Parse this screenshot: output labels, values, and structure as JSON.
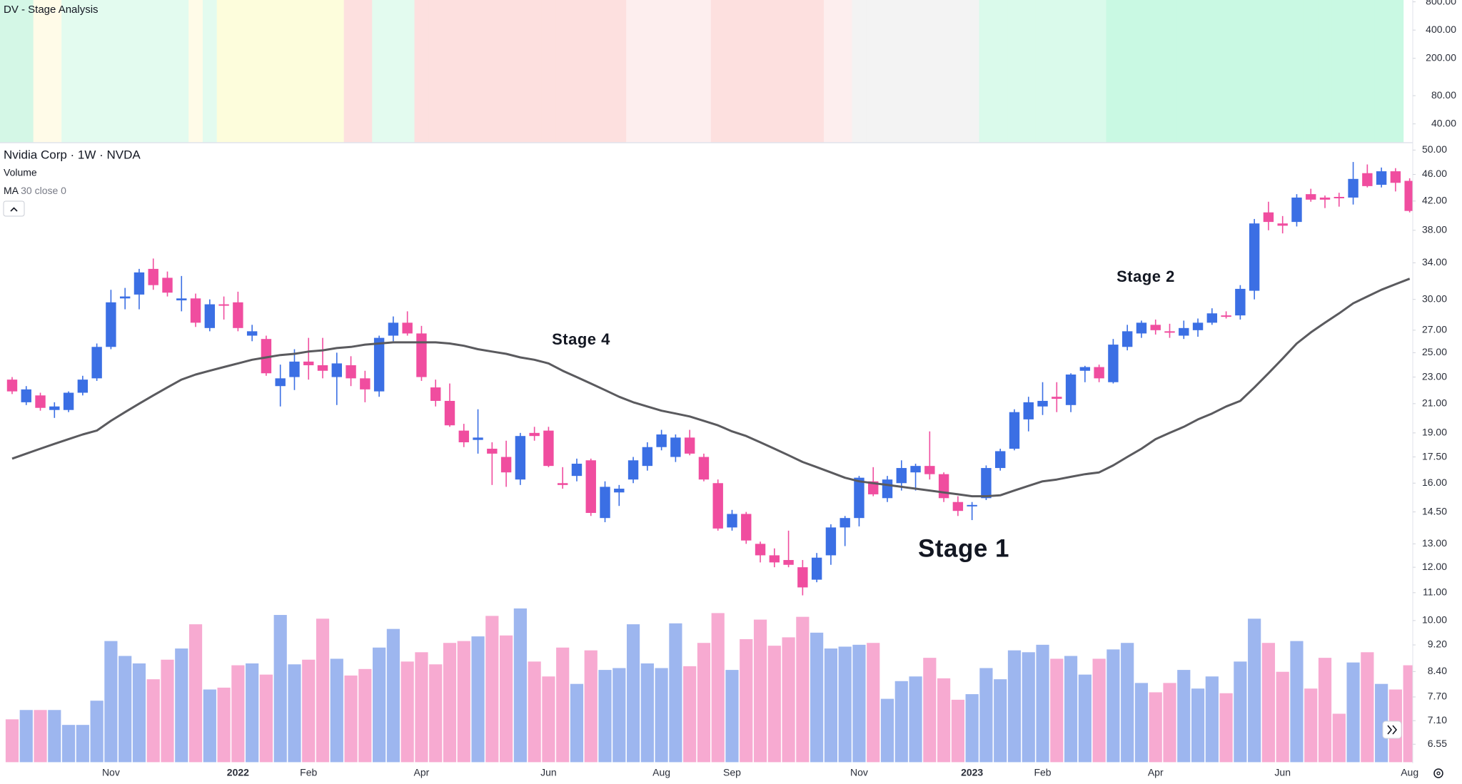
{
  "chart_data": {
    "type": "candlestick",
    "title": "Nvidia Corp · 1W · NVDA",
    "log_scale": true,
    "ylim": [
      6.16,
      51.3
    ],
    "yticks": [
      {
        "value": 50,
        "label": "50.00"
      },
      {
        "value": 46,
        "label": "46.00"
      },
      {
        "value": 42,
        "label": "42.00"
      },
      {
        "value": 38,
        "label": "38.00"
      },
      {
        "value": 34,
        "label": "34.00"
      },
      {
        "value": 30,
        "label": "30.00"
      },
      {
        "value": 27,
        "label": "27.00"
      },
      {
        "value": 25,
        "label": "25.00"
      },
      {
        "value": 23,
        "label": "23.00"
      },
      {
        "value": 21,
        "label": "21.00"
      },
      {
        "value": 19,
        "label": "19.00"
      },
      {
        "value": 17.5,
        "label": "17.50"
      },
      {
        "value": 16,
        "label": "16.00"
      },
      {
        "value": 14.5,
        "label": "14.50"
      },
      {
        "value": 13,
        "label": "13.00"
      },
      {
        "value": 12,
        "label": "12.00"
      },
      {
        "value": 11,
        "label": "11.00"
      },
      {
        "value": 10,
        "label": "10.00"
      },
      {
        "value": 9.2,
        "label": "9.20"
      },
      {
        "value": 8.4,
        "label": "8.40"
      },
      {
        "value": 7.7,
        "label": "7.70"
      },
      {
        "value": 7.1,
        "label": "7.10"
      },
      {
        "value": 6.55,
        "label": "6.55"
      }
    ],
    "categories": [
      null,
      null,
      null,
      null,
      null,
      null,
      null,
      "Nov",
      null,
      null,
      null,
      null,
      null,
      null,
      null,
      null,
      "2022",
      null,
      null,
      null,
      null,
      "Feb",
      null,
      null,
      null,
      null,
      null,
      null,
      null,
      "Apr",
      null,
      null,
      null,
      null,
      null,
      null,
      null,
      null,
      "Jun",
      null,
      null,
      null,
      null,
      null,
      null,
      null,
      "Aug",
      null,
      null,
      null,
      null,
      "Sep",
      null,
      null,
      null,
      null,
      null,
      null,
      null,
      null,
      "Nov",
      null,
      null,
      null,
      null,
      null,
      null,
      null,
      "2023",
      null,
      null,
      null,
      null,
      "Feb",
      null,
      null,
      null,
      null,
      null,
      null,
      null,
      "Apr",
      null,
      null,
      null,
      null,
      null,
      null,
      null,
      null,
      "Jun",
      null,
      null,
      null,
      null,
      null,
      null,
      null,
      null,
      "Aug"
    ],
    "open": [
      22.8,
      21.1,
      21.6,
      20.55,
      20.55,
      21.8,
      22.9,
      25.5,
      30.1,
      30.5,
      33.3,
      32.3,
      29.9,
      30.1,
      27.2,
      29.5,
      29.7,
      26.5,
      26.2,
      22.3,
      23.0,
      24.25,
      23.95,
      23.0,
      23.95,
      22.9,
      21.9,
      26.5,
      27.7,
      26.7,
      22.2,
      21.2,
      19.15,
      18.55,
      18.0,
      17.5,
      16.2,
      19.0,
      19.15,
      16.0,
      16.4,
      17.3,
      14.2,
      15.5,
      16.2,
      16.97,
      18.1,
      17.5,
      18.7,
      17.5,
      16.0,
      13.75,
      14.4,
      13.0,
      12.5,
      12.3,
      12.0,
      11.5,
      12.5,
      13.75,
      14.2,
      16.1,
      15.2,
      16.0,
      16.6,
      16.97,
      16.5,
      15.0,
      14.8,
      15.2,
      16.85,
      18.0,
      19.9,
      20.8,
      21.5,
      20.9,
      23.5,
      23.8,
      22.6,
      25.5,
      26.7,
      27.5,
      26.9,
      26.5,
      27.0,
      27.7,
      28.4,
      28.4,
      30.9,
      40.4,
      38.9,
      39.1,
      43.0,
      42.5,
      42.6,
      42.5,
      46.2,
      44.4,
      46.5,
      45.0
    ],
    "high": [
      23.0,
      22.3,
      21.8,
      21.1,
      21.9,
      23.1,
      25.8,
      31.0,
      31.2,
      33.3,
      34.5,
      33.0,
      32.5,
      30.6,
      30.0,
      30.3,
      30.8,
      27.5,
      26.5,
      24.0,
      25.3,
      26.3,
      26.3,
      25.0,
      24.7,
      23.5,
      26.5,
      28.3,
      28.8,
      27.4,
      22.8,
      22.5,
      19.6,
      20.6,
      18.4,
      18.5,
      19.0,
      19.4,
      19.4,
      16.9,
      17.4,
      17.4,
      16.1,
      15.9,
      17.5,
      18.4,
      19.2,
      18.9,
      19.2,
      17.7,
      16.2,
      14.6,
      14.5,
      13.1,
      12.8,
      13.6,
      12.3,
      12.6,
      13.9,
      14.3,
      16.4,
      16.9,
      16.4,
      17.3,
      17.1,
      19.1,
      16.6,
      15.3,
      15.0,
      17.0,
      18.0,
      20.6,
      21.5,
      22.6,
      22.6,
      23.3,
      23.9,
      24.0,
      26.2,
      27.5,
      27.9,
      28.0,
      27.6,
      27.9,
      28.1,
      29.1,
      28.8,
      31.5,
      39.5,
      41.9,
      39.9,
      43.0,
      43.8,
      42.8,
      43.2,
      48.0,
      47.6,
      47.1,
      47.0,
      45.4
    ],
    "low": [
      21.7,
      20.9,
      20.5,
      20.0,
      20.4,
      21.6,
      22.7,
      25.3,
      29.0,
      29.0,
      31.0,
      30.3,
      28.8,
      27.3,
      26.9,
      28.0,
      26.9,
      26.0,
      23.1,
      20.8,
      22.0,
      22.8,
      22.9,
      20.9,
      22.3,
      21.1,
      21.5,
      26.0,
      26.5,
      22.7,
      20.8,
      19.4,
      18.1,
      17.7,
      15.9,
      15.8,
      15.9,
      18.5,
      16.9,
      15.7,
      16.1,
      14.3,
      14.0,
      14.8,
      16.0,
      16.7,
      17.9,
      17.2,
      17.6,
      16.1,
      13.6,
      13.6,
      13.0,
      12.2,
      12.0,
      12.0,
      10.9,
      11.4,
      12.1,
      12.9,
      13.8,
      15.3,
      15.0,
      15.6,
      15.6,
      16.2,
      15.0,
      14.3,
      14.1,
      15.1,
      16.7,
      17.9,
      19.1,
      20.2,
      20.4,
      20.4,
      22.6,
      22.6,
      22.5,
      25.2,
      26.3,
      26.6,
      26.3,
      26.2,
      26.4,
      27.5,
      28.1,
      28.0,
      30.0,
      38.0,
      37.6,
      38.5,
      41.9,
      41.0,
      41.2,
      41.5,
      44.0,
      44.0,
      43.4,
      40.4
    ],
    "close": [
      21.9,
      22.05,
      20.7,
      20.8,
      21.8,
      22.8,
      25.5,
      29.7,
      30.3,
      32.9,
      31.5,
      30.7,
      30.1,
      27.7,
      29.5,
      29.4,
      27.2,
      26.9,
      23.3,
      22.9,
      24.25,
      23.95,
      23.5,
      24.1,
      22.9,
      22.05,
      26.3,
      27.7,
      26.7,
      23.0,
      21.2,
      19.5,
      18.4,
      18.7,
      17.7,
      16.6,
      18.8,
      18.8,
      16.97,
      15.9,
      17.1,
      14.45,
      15.8,
      15.7,
      17.3,
      18.1,
      18.9,
      18.7,
      17.7,
      16.2,
      13.7,
      14.4,
      13.15,
      12.5,
      12.2,
      12.1,
      11.2,
      12.4,
      13.75,
      14.2,
      16.3,
      15.4,
      16.2,
      16.85,
      16.97,
      16.5,
      15.2,
      14.55,
      14.85,
      16.85,
      17.85,
      20.4,
      21.1,
      21.2,
      21.35,
      23.2,
      23.8,
      22.9,
      25.7,
      26.9,
      27.7,
      27.0,
      26.8,
      27.2,
      27.7,
      28.6,
      28.3,
      31.1,
      38.9,
      39.1,
      38.6,
      42.5,
      42.2,
      42.2,
      42.5,
      45.3,
      44.2,
      46.5,
      44.7,
      40.6
    ],
    "up_color": "#3b6fe4",
    "down_color": "#f04d9f",
    "volume": {
      "name": "Volume",
      "ylim": [
        0,
        300
      ],
      "up_color": "#9db6ef",
      "down_color": "#f7aad1",
      "values": [
        46,
        56,
        56,
        56,
        40,
        40,
        66,
        130,
        114,
        106,
        89,
        110,
        122,
        148,
        78,
        80,
        104,
        106,
        94,
        158,
        105,
        110,
        154,
        111,
        93,
        100,
        123,
        143,
        108,
        118,
        105,
        128,
        130,
        135,
        157,
        136,
        165,
        108,
        92,
        123,
        84,
        120,
        99,
        101,
        148,
        106,
        101,
        149,
        103,
        128,
        160,
        99,
        132,
        153,
        125,
        134,
        156,
        139,
        122,
        124,
        126,
        128,
        68,
        87,
        92,
        112,
        90,
        67,
        73,
        101,
        89,
        120,
        118,
        126,
        111,
        114,
        94,
        111,
        121,
        128,
        85,
        75,
        85,
        99,
        79,
        92,
        74,
        108,
        154,
        128,
        97,
        130,
        79,
        112,
        52,
        107,
        118,
        84,
        78,
        104
      ]
    },
    "ma": {
      "label": "MA",
      "params": "30 close 0",
      "color": "#5a5a5e",
      "values": [
        17.4,
        17.7,
        18.0,
        18.3,
        18.6,
        18.9,
        19.15,
        19.8,
        20.4,
        21.0,
        21.6,
        22.2,
        22.8,
        23.2,
        23.5,
        23.8,
        24.1,
        24.4,
        24.6,
        24.8,
        24.9,
        25.1,
        25.2,
        25.4,
        25.5,
        25.7,
        25.8,
        25.9,
        25.9,
        25.9,
        25.9,
        25.8,
        25.6,
        25.3,
        25.1,
        24.9,
        24.6,
        24.4,
        24.1,
        23.5,
        23.0,
        22.5,
        22.0,
        21.5,
        21.1,
        20.8,
        20.5,
        20.3,
        20.1,
        19.8,
        19.5,
        19.1,
        18.8,
        18.4,
        18.0,
        17.6,
        17.2,
        16.9,
        16.6,
        16.3,
        16.1,
        16.0,
        15.9,
        15.8,
        15.7,
        15.6,
        15.5,
        15.4,
        15.3,
        15.3,
        15.35,
        15.6,
        15.85,
        16.1,
        16.2,
        16.35,
        16.5,
        16.6,
        17.0,
        17.5,
        18.0,
        18.6,
        19.0,
        19.4,
        19.9,
        20.3,
        20.8,
        21.2,
        22.2,
        23.3,
        24.5,
        25.8,
        26.8,
        27.7,
        28.6,
        29.6,
        30.3,
        31.0,
        31.6,
        32.2
      ]
    },
    "annotations": [
      "Stage 4",
      "Stage 2",
      "Stage 1"
    ],
    "indicator": {
      "title": "DV - Stage Analysis",
      "log_scale": true,
      "ylim": [
        25.3,
        837
      ],
      "yticks": [
        {
          "value": 800,
          "label": "800.00"
        },
        {
          "value": 400,
          "label": "400.00"
        },
        {
          "value": 200,
          "label": "200.00"
        },
        {
          "value": 80,
          "label": "80.00"
        },
        {
          "value": 40,
          "label": "40.00"
        }
      ],
      "colors": [
        "#d4f7e6",
        "#d4f7e6",
        "#fffbe8",
        "#fffbe8",
        "#e3fbef",
        "#e3fbef",
        "#e3fbef",
        "#e3fbef",
        "#e3fbef",
        "#e3fbef",
        "#e3fbef",
        "#e3fbef",
        "#e3fbef",
        "#fffbe8",
        "#e3fbef",
        "#fdfddc",
        "#fdfddc",
        "#fdfddc",
        "#fdfddc",
        "#fdfddc",
        "#fdfddc",
        "#fdfddc",
        "#fdfddc",
        "#fdfddc",
        "#fde0df",
        "#fde0df",
        "#e3fbef",
        "#e3fbef",
        "#e3fbef",
        "#fde0df",
        "#fde0df",
        "#fde0df",
        "#fde0df",
        "#fde0df",
        "#fde0df",
        "#fde0df",
        "#fde0df",
        "#fde0df",
        "#fde0df",
        "#fde0df",
        "#fde0df",
        "#fde0df",
        "#fde0df",
        "#fde0df",
        "#fdeeee",
        "#fdeeee",
        "#fdeeee",
        "#fdeeee",
        "#fdeeee",
        "#fdeeee",
        "#fde0df",
        "#fde0df",
        "#fde0df",
        "#fde0df",
        "#fde0df",
        "#fde0df",
        "#fde0df",
        "#fde0df",
        "#fdeeee",
        "#fdeeee",
        "#f3f3f3",
        "#f3f3f3",
        "#f3f3f3",
        "#f3f3f3",
        "#f3f3f3",
        "#f3f3f3",
        "#f3f3f3",
        "#f3f3f3",
        "#f3f3f3",
        "#dafaeb",
        "#dafaeb",
        "#dafaeb",
        "#dafaeb",
        "#dafaeb",
        "#dafaeb",
        "#dafaeb",
        "#dafaeb",
        "#dafaeb",
        "#c9f9e3",
        "#c9f9e3",
        "#c9f9e3",
        "#c9f9e3",
        "#c9f9e3",
        "#c9f9e3",
        "#c9f9e3",
        "#c9f9e3",
        "#c9f9e3",
        "#c9f9e3",
        "#c9f9e3",
        "#c9f9e3",
        "#c9f9e3",
        "#c9f9e3",
        "#c9f9e3",
        "#c9f9e3",
        "#c9f9e3",
        "#c9f9e3",
        "#c9f9e3",
        "#c9f9e3",
        "#c9f9e3",
        "#c9f9e3",
        "#c9f9e3",
        "#c9f9e3"
      ]
    }
  }
}
